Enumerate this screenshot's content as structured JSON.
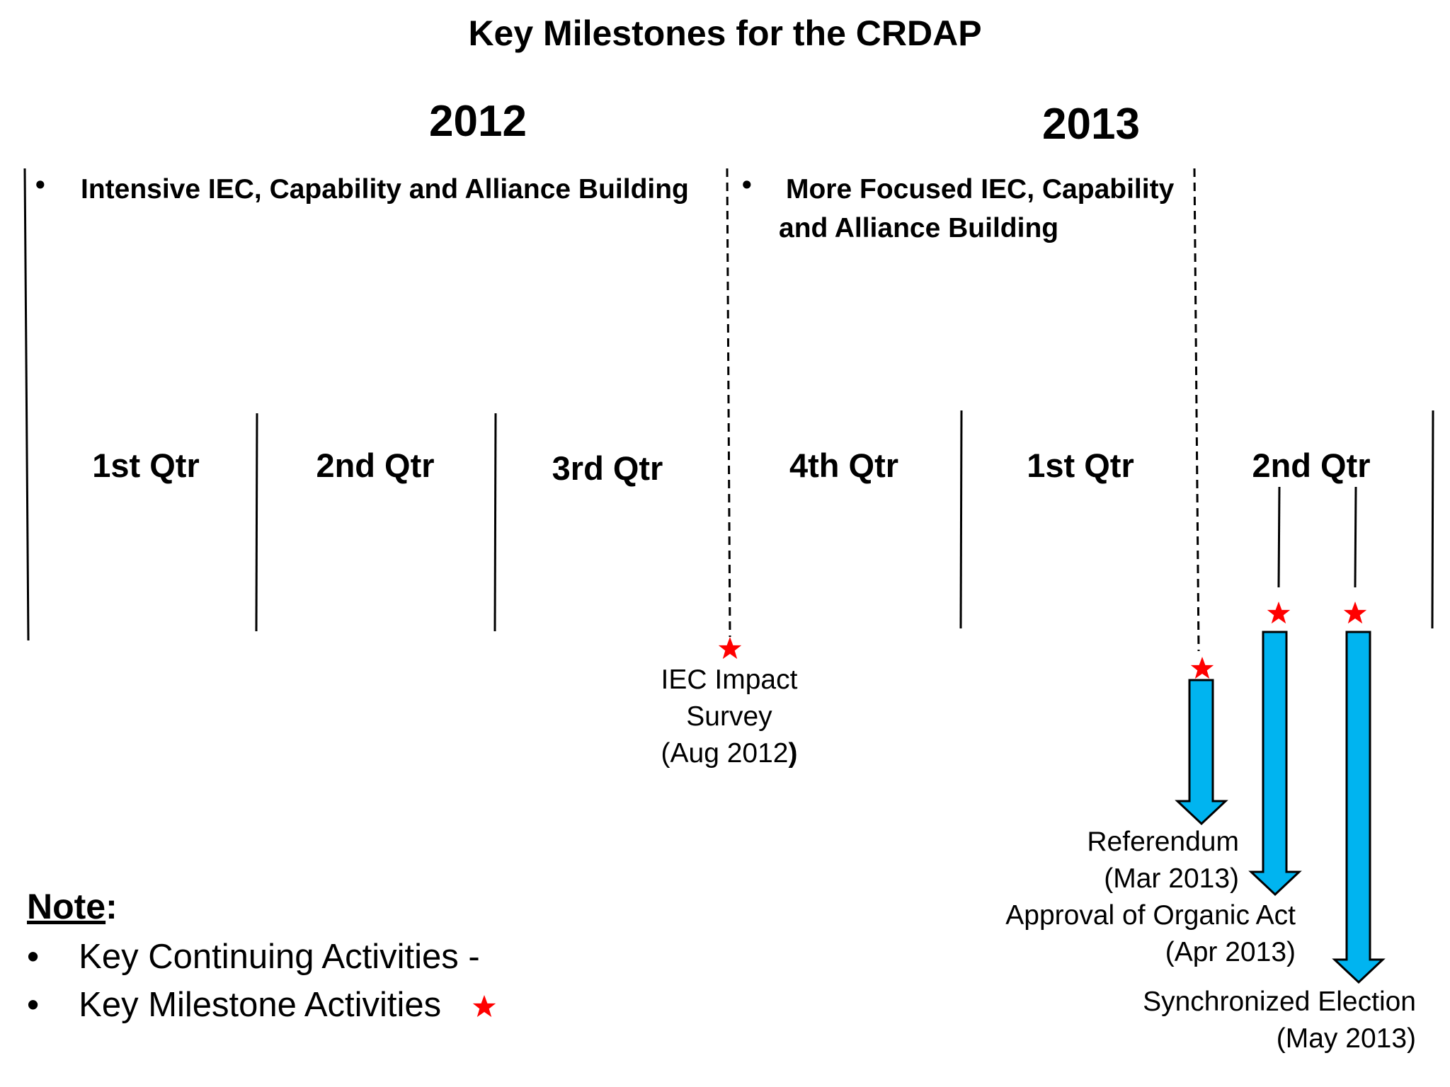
{
  "title": "Key Milestones for the CRDAP",
  "years": [
    "2012",
    "2013"
  ],
  "phases": [
    {
      "text": "Intensive IEC, Capability and Alliance Building"
    },
    {
      "text": "More Focused IEC, Capability and Alliance Building"
    }
  ],
  "quarters": [
    "1st Qtr",
    "2nd Qtr",
    "3rd Qtr",
    "4th Qtr",
    "1st Qtr",
    "2nd Qtr"
  ],
  "milestones": [
    {
      "line1": "IEC Impact",
      "line2": "Survey",
      "line3": "(Aug 2012",
      "line3_close": ")"
    },
    {
      "line1": "Referendum",
      "line2": "(Mar 2013)"
    },
    {
      "line1": "Approval of Organic Act",
      "line2": "(Apr 2013)"
    },
    {
      "line1": "Synchronized Election",
      "line2": "(May 2013)"
    }
  ],
  "note": {
    "title": "Note",
    "title_suffix": ":",
    "items": [
      "Key Continuing Activities -",
      "Key Milestone Activities"
    ],
    "bullet": "•"
  },
  "colors": {
    "star": "#ff0000",
    "arrow": "#00b4f0",
    "line": "#000000"
  }
}
